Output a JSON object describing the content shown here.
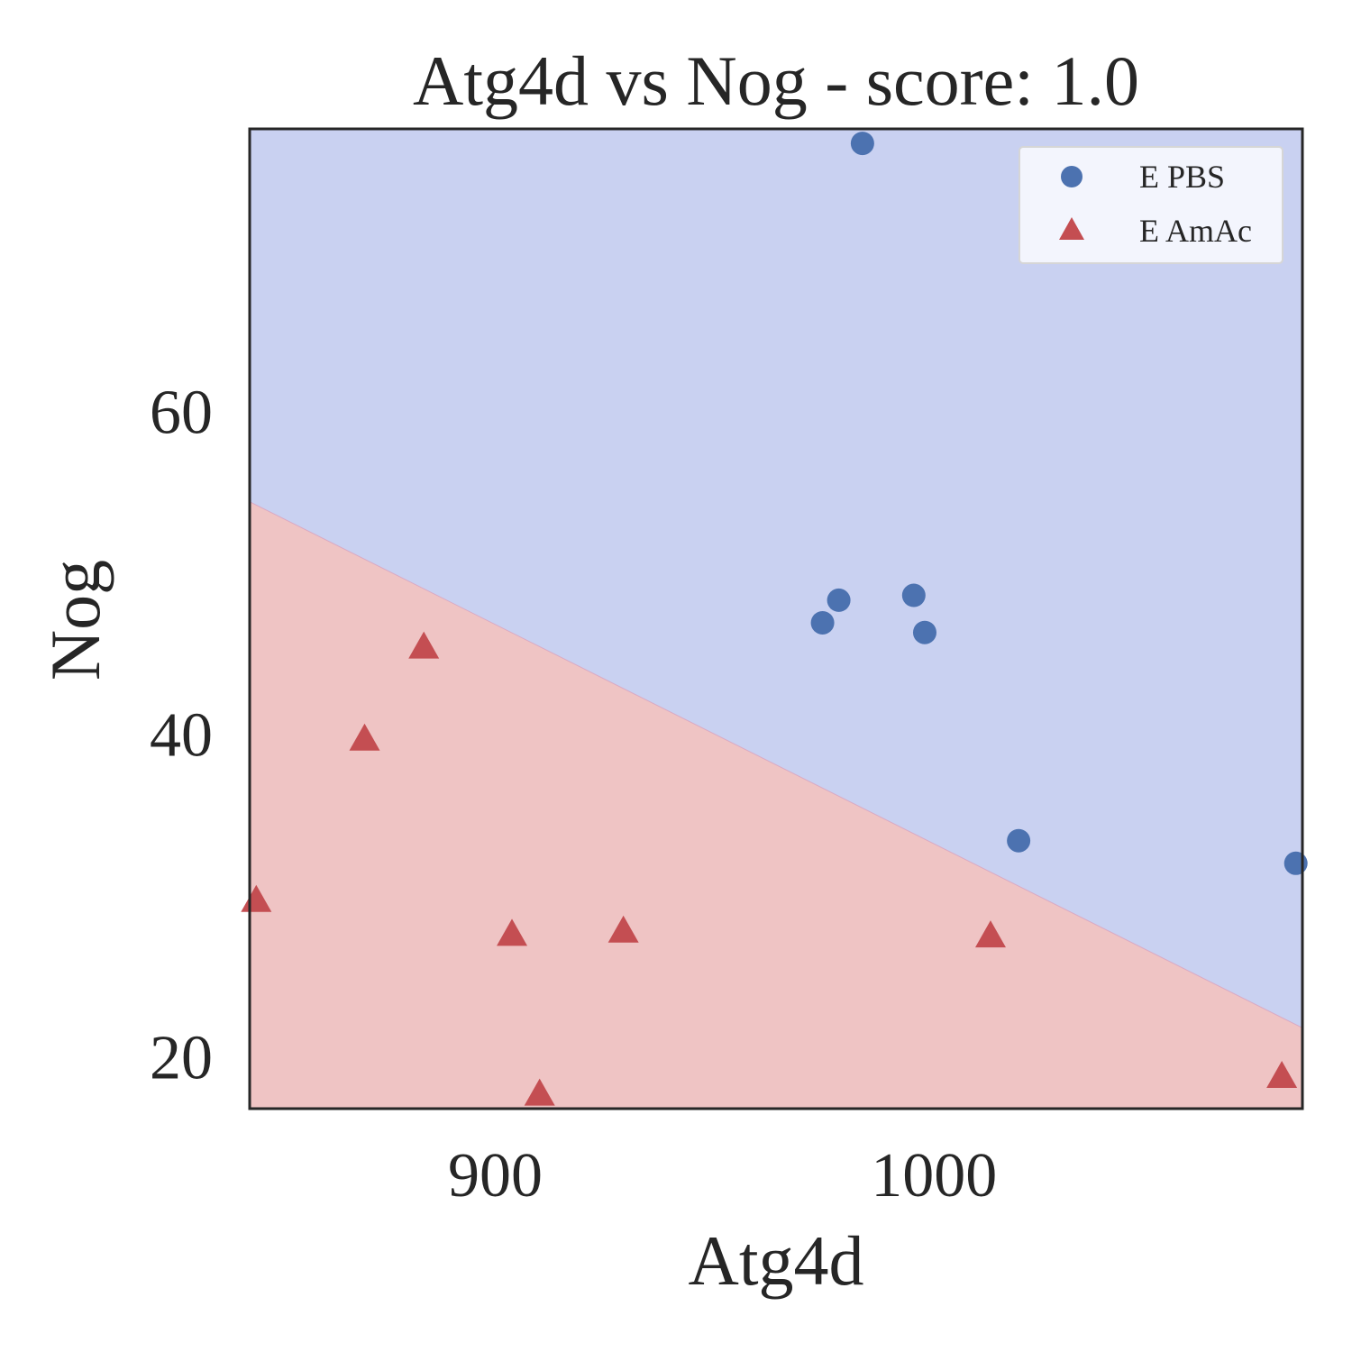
{
  "chart_data": {
    "type": "scatter",
    "title": "Atg4d vs Nog - score: 1.0",
    "xlabel": "Atg4d",
    "ylabel": "Nog",
    "xlim": [
      844,
      1084
    ],
    "ylim": [
      16.8,
      77.5
    ],
    "xticks": [
      {
        "value": 900,
        "label": "900"
      },
      {
        "value": 1000,
        "label": "1000"
      }
    ],
    "yticks": [
      {
        "value": 20,
        "label": "20"
      },
      {
        "value": 40,
        "label": "40"
      },
      {
        "value": 60,
        "label": "60"
      }
    ],
    "grid": false,
    "legend": "top-right",
    "decision_boundary": {
      "x": [
        844,
        1084
      ],
      "y": [
        54.4,
        21.8
      ],
      "above_region": "E PBS",
      "below_region": "E AmAc"
    },
    "series": [
      {
        "name": "E PBS",
        "marker": "circle",
        "x": [
          983.7,
          974.6,
          978.3,
          995.4,
          997.9,
          1019.3,
          1082.5
        ],
        "y": [
          76.6,
          46.9,
          48.3,
          48.6,
          46.3,
          33.4,
          32.0
        ]
      },
      {
        "name": "E AmAc",
        "marker": "triangle",
        "x": [
          845.5,
          870.2,
          883.7,
          903.8,
          910.1,
          929.2,
          1012.9,
          1079.3
        ],
        "y": [
          29.6,
          39.6,
          45.3,
          27.5,
          17.6,
          27.7,
          27.4,
          18.7
        ]
      }
    ]
  },
  "colors": {
    "above_region": "#c9d1f1",
    "below_region": "#efc4c4",
    "pbs_marker": "#4c72b0",
    "amac_marker": "#c44e52",
    "axes": "#262626",
    "legend_bg": "#f3f5fd"
  }
}
